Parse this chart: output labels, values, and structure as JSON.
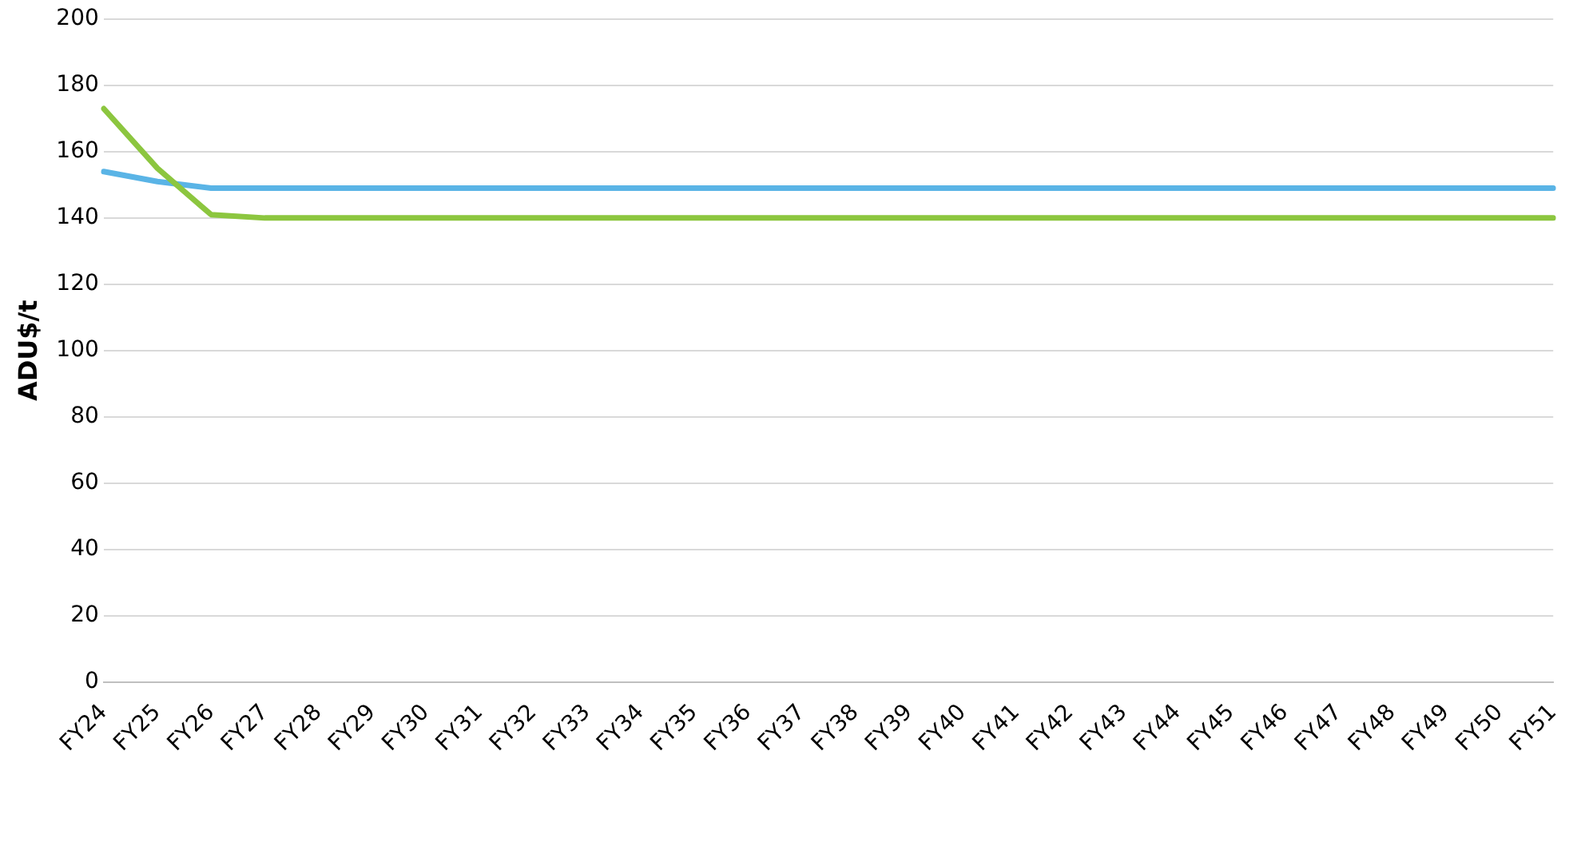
{
  "chart_data": {
    "type": "line",
    "ylabel": "ADU$/t",
    "categories": [
      "FY24",
      "FY25",
      "FY26",
      "FY27",
      "FY28",
      "FY29",
      "FY30",
      "FY31",
      "FY32",
      "FY33",
      "FY34",
      "FY35",
      "FY36",
      "FY37",
      "FY38",
      "FY39",
      "FY40",
      "FY41",
      "FY42",
      "FY43",
      "FY44",
      "FY45",
      "FY46",
      "FY47",
      "FY48",
      "FY49",
      "FY50",
      "FY51"
    ],
    "series": [
      {
        "color": "#8cc63f",
        "values": [
          173,
          155,
          141,
          140,
          140,
          140,
          140,
          140,
          140,
          140,
          140,
          140,
          140,
          140,
          140,
          140,
          140,
          140,
          140,
          140,
          140,
          140,
          140,
          140,
          140,
          140,
          140,
          140
        ]
      },
      {
        "color": "#5ab4e6",
        "values": [
          154,
          151,
          149,
          149,
          149,
          149,
          149,
          149,
          149,
          149,
          149,
          149,
          149,
          149,
          149,
          149,
          149,
          149,
          149,
          149,
          149,
          149,
          149,
          149,
          149,
          149,
          149,
          149
        ]
      }
    ],
    "ylim": [
      0,
      200
    ],
    "yticks": [
      0,
      20,
      40,
      60,
      80,
      100,
      120,
      140,
      160,
      180,
      200
    ],
    "grid": "y",
    "marker": "none",
    "line_style": "solid"
  }
}
